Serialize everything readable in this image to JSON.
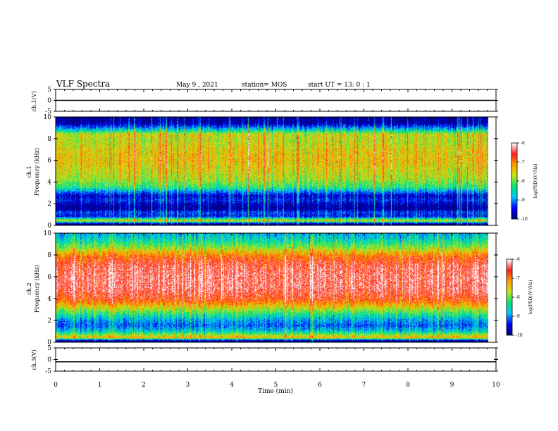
{
  "header": {
    "title": "VLF Spectra",
    "date": "May 9 , 2021",
    "station": "station= MOS",
    "start": "start  UT  =   13: 0  : 1"
  },
  "chart_data": [
    {
      "type": "line",
      "panel": "ch1-voltage",
      "ylabel": "ch.1(V)",
      "yticks": [
        "5",
        "0",
        "-5"
      ],
      "ylim": [
        -5,
        5
      ],
      "x": [
        0,
        10
      ],
      "values": [
        0,
        0
      ]
    },
    {
      "type": "heatmap",
      "panel": "ch1-spectrogram",
      "ylabel": "ch.1\nFrequency (kHz)",
      "yticks": [
        "0",
        "2",
        "4",
        "6",
        "8",
        "10"
      ],
      "ylim": [
        0,
        10
      ],
      "xlim": [
        0,
        9.85
      ],
      "colorbar": {
        "label": "log(PSD)(V²/Hz)",
        "ticks": [
          "-6",
          "-7",
          "-8",
          "-9",
          "-10"
        ],
        "range": [
          -10,
          -6
        ],
        "colors": [
          "#000080",
          "#0000ff",
          "#00c8ff",
          "#00e676",
          "#c8e614",
          "#ffa000",
          "#ff1e1e",
          "#ffffff"
        ]
      },
      "frequency_profile_khz": [
        0.1,
        0.4,
        0.6,
        0.8,
        1.2,
        1.5,
        1.9,
        2.3,
        2.7,
        3.1,
        3.5,
        4.2,
        5.0,
        6.0,
        7.0,
        7.8,
        8.4,
        8.8,
        9.1,
        9.4,
        9.7,
        9.9
      ],
      "frequency_profile_logpsd": [
        -10,
        -7.5,
        -8.5,
        -9.5,
        -9.3,
        -10,
        -9.8,
        -9.4,
        -9.7,
        -9.0,
        -8.3,
        -7.8,
        -7.6,
        -7.4,
        -7.5,
        -7.7,
        -7.6,
        -8.6,
        -9.2,
        -9.8,
        -10,
        -10
      ]
    },
    {
      "type": "heatmap",
      "panel": "ch2-spectrogram",
      "ylabel": "ch.2\nFrequency (kHz)",
      "yticks": [
        "0",
        "2",
        "4",
        "6",
        "8",
        "10"
      ],
      "ylim": [
        0,
        10
      ],
      "xlim": [
        0,
        9.85
      ],
      "colorbar": {
        "label": "log(PSD)(V²/Hz)",
        "ticks": [
          "-6",
          "-7",
          "-8",
          "-9",
          "-10"
        ],
        "range": [
          -10,
          -6
        ],
        "colors": [
          "#000080",
          "#0000ff",
          "#00c8ff",
          "#00e676",
          "#c8e614",
          "#ffa000",
          "#ff1e1e",
          "#ffffff"
        ]
      },
      "frequency_profile_khz": [
        0.1,
        0.4,
        0.7,
        1.0,
        1.5,
        2.0,
        2.5,
        3.0,
        3.5,
        4.0,
        5.0,
        6.0,
        7.0,
        7.8,
        8.3,
        8.7,
        9.1,
        9.5,
        9.9
      ],
      "frequency_profile_logpsd": [
        -10,
        -7.3,
        -8.0,
        -8.7,
        -9.2,
        -8.9,
        -8.4,
        -7.8,
        -7.2,
        -6.7,
        -6.4,
        -6.4,
        -6.5,
        -6.9,
        -7.4,
        -7.9,
        -8.3,
        -8.6,
        -8.8
      ]
    },
    {
      "type": "line",
      "panel": "ch3-voltage",
      "ylabel": "ch.3(V)",
      "yticks": [
        "5",
        "0",
        "-5"
      ],
      "ylim": [
        -5,
        5
      ],
      "x": [
        0,
        10
      ],
      "values": [
        -1,
        -1
      ]
    }
  ],
  "xaxis": {
    "label": "Time  (min)",
    "ticks": [
      "0",
      "1",
      "2",
      "3",
      "4",
      "5",
      "6",
      "7",
      "8",
      "9",
      "10"
    ],
    "xlim": [
      0,
      10
    ]
  }
}
